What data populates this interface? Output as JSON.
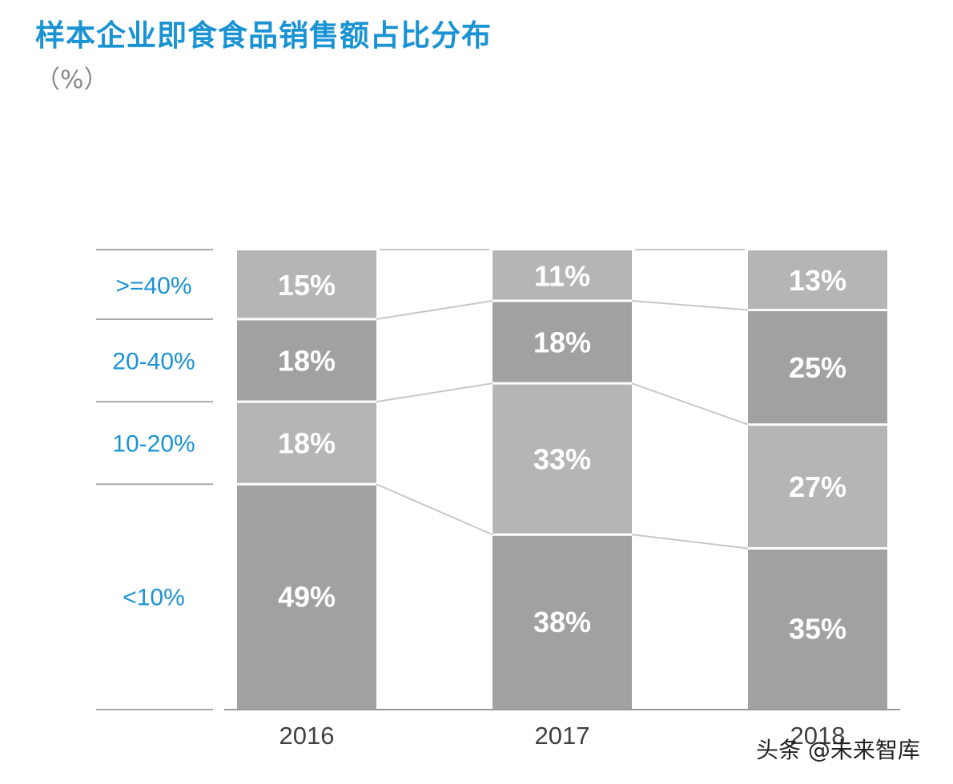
{
  "chart_data": {
    "type": "bar",
    "stacked": true,
    "title": "样本企业即食食品销售额占比分布",
    "unit_label": "（%）",
    "categories": [
      "2016",
      "2017",
      "2018"
    ],
    "series": [
      {
        "name": "<10%",
        "values": [
          49,
          38,
          35
        ]
      },
      {
        "name": "10-20%",
        "values": [
          18,
          33,
          27
        ]
      },
      {
        "name": "20-40%",
        "values": [
          18,
          18,
          25
        ]
      },
      {
        "name": ">=40%",
        "values": [
          15,
          11,
          13
        ]
      }
    ],
    "data_labels": [
      [
        "49%",
        "38%",
        "35%"
      ],
      [
        "18%",
        "33%",
        "27%"
      ],
      [
        "18%",
        "18%",
        "25%"
      ],
      [
        "15%",
        "11%",
        "13%"
      ]
    ],
    "ylim": [
      0,
      100
    ],
    "legend_position": "left",
    "colors": {
      "title": "#1a93d3",
      "legend_text": "#1a93d3",
      "bar_light": "#b4b5b4",
      "bar_dark": "#a0a1a0",
      "bar_label": "#ffffff",
      "axis_label": "#404040",
      "connector": "#c8c8c8"
    }
  },
  "watermark": "头条 @未来智库"
}
